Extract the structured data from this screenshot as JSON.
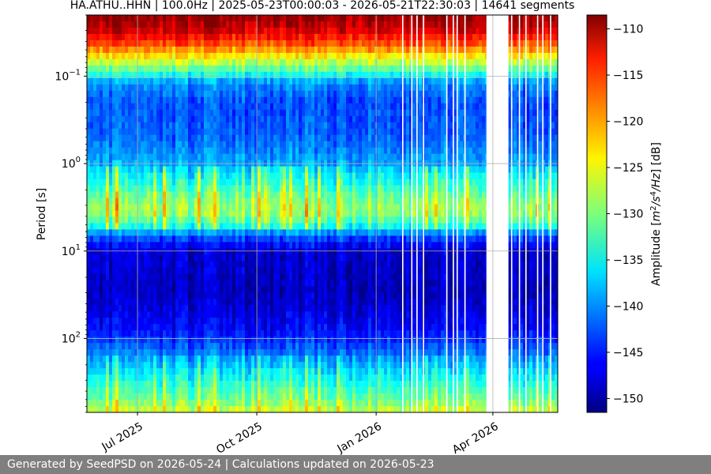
{
  "chart_data": {
    "type": "heatmap",
    "title": "HA.ATHU..HHN | 100.0Hz | 2025-05-23T00:00:03 - 2026-05-21T22:30:03 | 14641 segments",
    "xlabel": "",
    "ylabel": "Period [s]",
    "yscale": "log",
    "y_inverted": true,
    "ylim": [
      0.02,
      700
    ],
    "xlim": [
      "2025-05-23",
      "2026-05-21"
    ],
    "x_ticks": [
      {
        "date": "2025-07-01",
        "label": "Jul 2025"
      },
      {
        "date": "2025-10-01",
        "label": "Oct 2025"
      },
      {
        "date": "2026-01-01",
        "label": "Jan 2026"
      },
      {
        "date": "2026-04-01",
        "label": "Apr 2026"
      }
    ],
    "y_ticks": [
      {
        "value": 0.1,
        "label_base": "10",
        "label_exp": "−1"
      },
      {
        "value": 1,
        "label_base": "10",
        "label_exp": "0"
      },
      {
        "value": 10,
        "label_base": "10",
        "label_exp": "1"
      },
      {
        "value": 100,
        "label_base": "10",
        "label_exp": "2"
      }
    ],
    "grid": true,
    "colormap": "jet",
    "colorbar": {
      "label_text": "Amplitude [m²/s⁴/Hz] [dB]",
      "vmin": -151.5,
      "vmax": -108.5,
      "ticks": [
        -110,
        -115,
        -120,
        -125,
        -130,
        -135,
        -140,
        -145,
        -150
      ]
    },
    "amplitude_profile_db": [
      {
        "period_s": 0.02,
        "db": -109
      },
      {
        "period_s": 0.03,
        "db": -112
      },
      {
        "period_s": 0.045,
        "db": -118
      },
      {
        "period_s": 0.065,
        "db": -126
      },
      {
        "period_s": 0.09,
        "db": -133
      },
      {
        "period_s": 0.12,
        "db": -140
      },
      {
        "period_s": 0.2,
        "db": -143
      },
      {
        "period_s": 0.5,
        "db": -142
      },
      {
        "period_s": 1.0,
        "db": -139
      },
      {
        "period_s": 1.6,
        "db": -135
      },
      {
        "period_s": 2.5,
        "db": -131
      },
      {
        "period_s": 3.5,
        "db": -129
      },
      {
        "period_s": 5.0,
        "db": -134
      },
      {
        "period_s": 7.0,
        "db": -143
      },
      {
        "period_s": 10.0,
        "db": -148
      },
      {
        "period_s": 30.0,
        "db": -149
      },
      {
        "period_s": 80.0,
        "db": -146
      },
      {
        "period_s": 150.0,
        "db": -141
      },
      {
        "period_s": 300.0,
        "db": -135
      },
      {
        "period_s": 500.0,
        "db": -131
      },
      {
        "period_s": 700.0,
        "db": -127
      }
    ],
    "data_gaps": [
      {
        "start": "2026-03-27",
        "end": "2026-04-01"
      },
      {
        "start": "2026-04-01",
        "end": "2026-04-13"
      },
      {
        "start": "2026-01-21",
        "end": "2026-01-22"
      },
      {
        "start": "2026-01-28",
        "end": "2026-01-29"
      },
      {
        "start": "2026-02-01",
        "end": "2026-02-02"
      },
      {
        "start": "2026-02-06",
        "end": "2026-02-07"
      },
      {
        "start": "2026-02-24",
        "end": "2026-02-25"
      },
      {
        "start": "2026-03-01",
        "end": "2026-03-02"
      },
      {
        "start": "2026-03-04",
        "end": "2026-03-05"
      },
      {
        "start": "2026-03-10",
        "end": "2026-03-11"
      },
      {
        "start": "2026-04-15",
        "end": "2026-04-16"
      },
      {
        "start": "2026-04-21",
        "end": "2026-04-22"
      },
      {
        "start": "2026-04-26",
        "end": "2026-04-27"
      },
      {
        "start": "2026-05-05",
        "end": "2026-05-06"
      },
      {
        "start": "2026-05-09",
        "end": "2026-05-10"
      },
      {
        "start": "2026-05-15",
        "end": "2026-05-16"
      }
    ]
  },
  "footer": {
    "text": "Generated by SeedPSD on 2026-05-24 | Calculations updated on 2026-05-23"
  }
}
